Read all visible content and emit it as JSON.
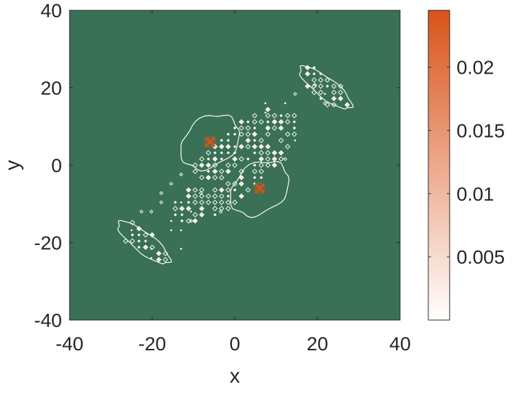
{
  "chart_data": {
    "type": "heatmap",
    "xlabel": "x",
    "ylabel": "y",
    "xlim": [
      -40,
      40
    ],
    "ylim": [
      -40,
      40
    ],
    "x_ticks": [
      -40,
      -20,
      0,
      20,
      40
    ],
    "y_ticks": [
      -40,
      -20,
      0,
      20,
      40
    ],
    "x_tick_labels": [
      "-40",
      "-20",
      "0",
      "20",
      "40"
    ],
    "y_tick_labels": [
      "-40",
      "-20",
      "0",
      "20",
      "40"
    ],
    "background_color": "#3a7055",
    "contour_color": "#ffffff",
    "colorbar": {
      "range": [
        0,
        0.0245
      ],
      "ticks": [
        0.005,
        0.01,
        0.015,
        0.02
      ],
      "tick_labels": [
        "0.005",
        "0.01",
        "0.015",
        "0.02"
      ],
      "color_low": "#ffffff",
      "color_high": "#d95319"
    },
    "peaks": [
      {
        "x": -6,
        "y": 6,
        "value": 0.022
      },
      {
        "x": 6,
        "y": -6,
        "value": 0.022
      }
    ],
    "regions": [
      {
        "cx": 0,
        "cy": 0,
        "length": 40,
        "width": 14,
        "angle": 45,
        "density": "high"
      },
      {
        "cx": 22,
        "cy": 20,
        "length": 14,
        "width": 6,
        "angle": -45,
        "density": "high"
      },
      {
        "cx": -22,
        "cy": -20,
        "length": 14,
        "width": 6,
        "angle": -45,
        "density": "high"
      },
      {
        "cx": 15,
        "cy": 14,
        "length": 20,
        "width": 22,
        "angle": -45,
        "density": "sparse"
      },
      {
        "cx": -15,
        "cy": -14,
        "length": 20,
        "width": 22,
        "angle": -45,
        "density": "sparse"
      }
    ]
  }
}
